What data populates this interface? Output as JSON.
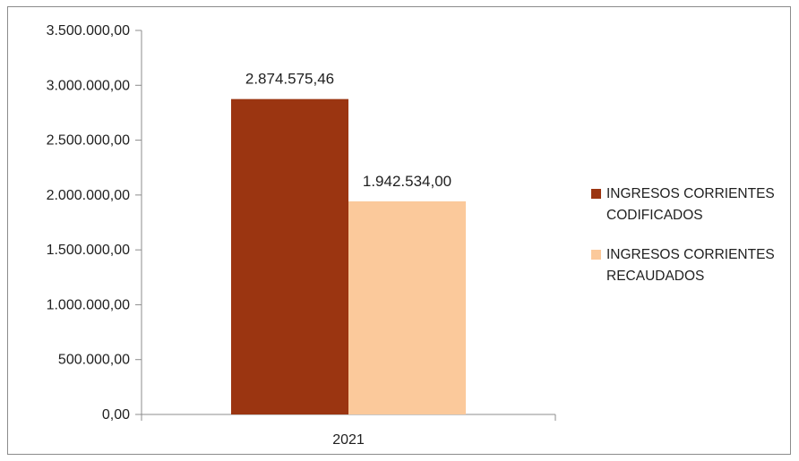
{
  "chart_data": {
    "type": "bar",
    "categories": [
      "2021"
    ],
    "series": [
      {
        "name": "INGRESOS CORRIENTES CODIFICADOS",
        "legend_lines": [
          "INGRESOS CORRIENTES",
          "CODIFICADOS"
        ],
        "values": [
          2874575.46
        ],
        "value_labels": [
          "2.874.575,46"
        ],
        "color": "#9B3511"
      },
      {
        "name": "INGRESOS CORRIENTES RECAUDADOS",
        "legend_lines": [
          "INGRESOS CORRIENTES",
          "RECAUDADOS"
        ],
        "values": [
          1942534.0
        ],
        "value_labels": [
          "1.942.534,00"
        ],
        "color": "#FBC99B"
      }
    ],
    "ylim": [
      0,
      3500000
    ],
    "y_ticks": [
      0,
      500000,
      1000000,
      1500000,
      2000000,
      2500000,
      3000000,
      3500000
    ],
    "y_tick_labels": [
      "0,00",
      "500.000,00",
      "1.000.000,00",
      "1.500.000,00",
      "2.000.000,00",
      "2.500.000,00",
      "3.000.000,00",
      "3.500.000,00"
    ],
    "grid": false,
    "legend_position": "right",
    "title": "",
    "xlabel": "",
    "ylabel": ""
  }
}
